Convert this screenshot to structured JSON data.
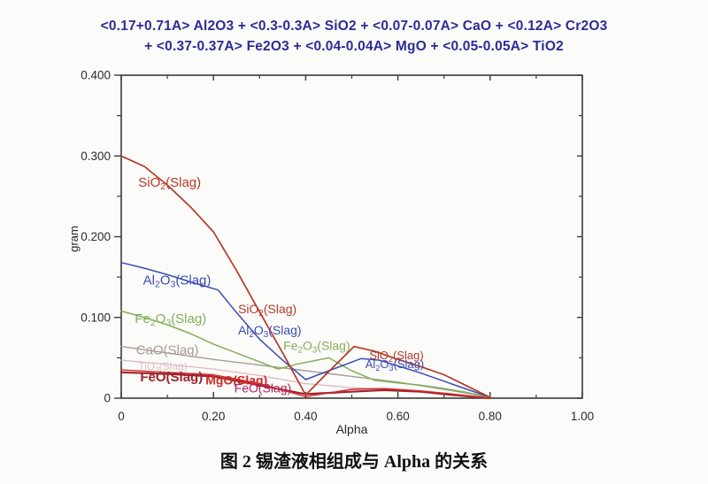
{
  "title": {
    "line1": "<0.17+0.71A> Al2O3 +  <0.3-0.3A> SiO2 +  <0.07-0.07A> CaO + <0.12A> Cr2O3",
    "line2": "+ <0.37-0.37A> Fe2O3 +  <0.04-0.04A> MgO +  <0.05-0.05A> TiO2"
  },
  "caption": "图 2  锡渣液相组成与 Alpha 的关系",
  "colors": {
    "title_blue": "#2c2c96",
    "axis": "#3a3a3a",
    "tick_text": "#2a2a2a",
    "sio2_red": "#b43a28",
    "al2o3_blue": "#3c4cb4",
    "fe2o3_green": "#82b058",
    "cao_gray": "#a79c93",
    "feo_maroon": "#9c2433",
    "mgo_red": "#d02a24",
    "feo_label2_magenta": "#ae2462",
    "tio2_faint_pink": "#e0b4bc"
  },
  "chart_data": {
    "type": "line",
    "title": "",
    "xlabel": "Alpha",
    "ylabel": "gram",
    "xlim": [
      0,
      1.0
    ],
    "ylim": [
      0,
      0.4
    ],
    "grid": false,
    "legend_position": "inline-labels",
    "x_ticks": [
      {
        "v": 0.0,
        "label": "0"
      },
      {
        "v": 0.2,
        "label": "0.20"
      },
      {
        "v": 0.4,
        "label": "0.40"
      },
      {
        "v": 0.6,
        "label": "0.60"
      },
      {
        "v": 0.8,
        "label": "0.80"
      },
      {
        "v": 1.0,
        "label": "1.00"
      }
    ],
    "x_minor_ticks": [
      0.1,
      0.3,
      0.5,
      0.7,
      0.9
    ],
    "y_ticks": [
      {
        "v": 0.0,
        "label": "0"
      },
      {
        "v": 0.1,
        "label": "0.100"
      },
      {
        "v": 0.2,
        "label": "0.200"
      },
      {
        "v": 0.3,
        "label": "0.300"
      },
      {
        "v": 0.4,
        "label": "0.400"
      }
    ],
    "y_minor_ticks": [
      0.05,
      0.15,
      0.25,
      0.35
    ],
    "series": [
      {
        "name": "TiO2(Slag)",
        "color": "#e0b4bc",
        "width": 1.2,
        "points": [
          [
            0,
            0.047
          ],
          [
            0.1,
            0.042
          ],
          [
            0.2,
            0.036
          ],
          [
            0.3,
            0.028
          ],
          [
            0.4,
            0.018
          ],
          [
            0.5,
            0.013
          ],
          [
            0.6,
            0.01
          ],
          [
            0.7,
            0.005
          ],
          [
            0.8,
            0.0
          ]
        ]
      },
      {
        "name": "CaO(Slag)",
        "color": "#a79c93",
        "width": 1.4,
        "points": [
          [
            0,
            0.064
          ],
          [
            0.1,
            0.056
          ],
          [
            0.2,
            0.048
          ],
          [
            0.3,
            0.041
          ],
          [
            0.4,
            0.034
          ],
          [
            0.5,
            0.027
          ],
          [
            0.6,
            0.02
          ],
          [
            0.7,
            0.011
          ],
          [
            0.8,
            0.001
          ]
        ]
      },
      {
        "name": "FeO(Slag)",
        "color": "#9c2433",
        "width": 2.2,
        "points": [
          [
            0,
            0.032
          ],
          [
            0.1,
            0.03
          ],
          [
            0.2,
            0.027
          ],
          [
            0.3,
            0.016
          ],
          [
            0.4,
            0.005
          ],
          [
            0.5,
            0.008
          ],
          [
            0.57,
            0.01
          ],
          [
            0.65,
            0.008
          ],
          [
            0.72,
            0.004
          ],
          [
            0.8,
            0.0
          ]
        ]
      },
      {
        "name": "MgO(Slag)",
        "color": "#d02a24",
        "width": 1.4,
        "points": [
          [
            0,
            0.035
          ],
          [
            0.1,
            0.032
          ],
          [
            0.2,
            0.029
          ],
          [
            0.3,
            0.018
          ],
          [
            0.4,
            0.002
          ],
          [
            0.5,
            0.011
          ],
          [
            0.57,
            0.012
          ],
          [
            0.65,
            0.009
          ],
          [
            0.72,
            0.005
          ],
          [
            0.8,
            0.0
          ]
        ]
      },
      {
        "name": "Fe2O3(Slag)",
        "color": "#82b058",
        "width": 1.5,
        "points": [
          [
            0,
            0.108
          ],
          [
            0.05,
            0.1
          ],
          [
            0.1,
            0.091
          ],
          [
            0.15,
            0.08
          ],
          [
            0.2,
            0.067
          ],
          [
            0.25,
            0.056
          ],
          [
            0.3,
            0.045
          ],
          [
            0.34,
            0.036
          ],
          [
            0.38,
            0.042
          ],
          [
            0.45,
            0.05
          ],
          [
            0.5,
            0.034
          ],
          [
            0.55,
            0.022
          ],
          [
            0.6,
            0.019
          ],
          [
            0.65,
            0.016
          ],
          [
            0.7,
            0.012
          ],
          [
            0.75,
            0.007
          ],
          [
            0.8,
            0.001
          ]
        ]
      },
      {
        "name": "Al2O3(Slag)",
        "color": "#3c4cb4",
        "width": 1.5,
        "points": [
          [
            0,
            0.168
          ],
          [
            0.05,
            0.161
          ],
          [
            0.1,
            0.153
          ],
          [
            0.15,
            0.144
          ],
          [
            0.21,
            0.134
          ],
          [
            0.25,
            0.106
          ],
          [
            0.3,
            0.073
          ],
          [
            0.35,
            0.047
          ],
          [
            0.4,
            0.023
          ],
          [
            0.45,
            0.034
          ],
          [
            0.52,
            0.049
          ],
          [
            0.56,
            0.047
          ],
          [
            0.6,
            0.04
          ],
          [
            0.65,
            0.031
          ],
          [
            0.7,
            0.021
          ],
          [
            0.75,
            0.011
          ],
          [
            0.8,
            0.001
          ]
        ]
      },
      {
        "name": "SiO2(Slag)",
        "color": "#b43a28",
        "width": 1.7,
        "points": [
          [
            0,
            0.3
          ],
          [
            0.05,
            0.287
          ],
          [
            0.1,
            0.264
          ],
          [
            0.15,
            0.237
          ],
          [
            0.2,
            0.206
          ],
          [
            0.25,
            0.158
          ],
          [
            0.3,
            0.107
          ],
          [
            0.35,
            0.056
          ],
          [
            0.4,
            0.004
          ],
          [
            0.45,
            0.033
          ],
          [
            0.505,
            0.064
          ],
          [
            0.55,
            0.058
          ],
          [
            0.6,
            0.048
          ],
          [
            0.65,
            0.039
          ],
          [
            0.7,
            0.029
          ],
          [
            0.75,
            0.015
          ],
          [
            0.8,
            0.001
          ]
        ]
      }
    ],
    "annotations": [
      {
        "text": "SiO2(Slag)",
        "x": 0.105,
        "y": 0.262,
        "color": "#b43a28",
        "size": 15,
        "bold": false,
        "opacity": 1
      },
      {
        "text": "Al2O3(Slag)",
        "x": 0.121,
        "y": 0.141,
        "color": "#3c4cb4",
        "size": 15,
        "bold": false,
        "opacity": 1
      },
      {
        "text": "Fe2O3(Slag)",
        "x": 0.107,
        "y": 0.093,
        "color": "#82b058",
        "size": 15,
        "bold": false,
        "opacity": 1
      },
      {
        "text": "CaO(Slag)",
        "x": 0.1,
        "y": 0.054,
        "color": "#a79c93",
        "size": 15,
        "bold": false,
        "opacity": 1
      },
      {
        "text": "TiO2(Slag)",
        "x": 0.09,
        "y": 0.035,
        "color": "#e0b4bc",
        "size": 12,
        "bold": false,
        "opacity": 0.85
      },
      {
        "text": "FeO(Slag)",
        "x": 0.109,
        "y": 0.021,
        "color": "#9c2433",
        "size": 15,
        "bold": true,
        "opacity": 1
      },
      {
        "text": "MgO(Slag)",
        "x": 0.25,
        "y": 0.017,
        "color": "#d02a24",
        "size": 14,
        "bold": true,
        "opacity": 1
      },
      {
        "text": "FeO(Slag)",
        "x": 0.307,
        "y": 0.007,
        "color": "#ae2462",
        "size": 14,
        "bold": false,
        "opacity": 1
      },
      {
        "text": "SiO2(Slag)",
        "x": 0.317,
        "y": 0.105,
        "color": "#b43a28",
        "size": 14,
        "bold": false,
        "opacity": 1
      },
      {
        "text": "Al2O3(Slag)",
        "x": 0.322,
        "y": 0.079,
        "color": "#3c4cb4",
        "size": 14,
        "bold": false,
        "opacity": 1
      },
      {
        "text": "Fe2O3(Slag)",
        "x": 0.424,
        "y": 0.06,
        "color": "#82b058",
        "size": 14,
        "bold": false,
        "opacity": 1
      },
      {
        "text": "SiO2(Slag)",
        "x": 0.597,
        "y": 0.048,
        "color": "#b43a28",
        "size": 13,
        "bold": false,
        "opacity": 1
      },
      {
        "text": "Al2O3(Slag)",
        "x": 0.593,
        "y": 0.037,
        "color": "#3c4cb4",
        "size": 13,
        "bold": false,
        "opacity": 1
      }
    ]
  }
}
